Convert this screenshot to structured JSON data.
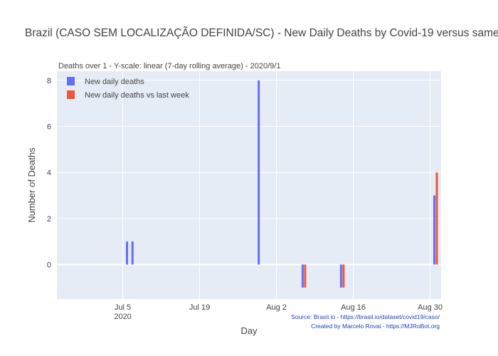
{
  "chart_data": {
    "type": "bar",
    "title": "Brazil (CASO SEM LOCALIZAÇÃO DEFINIDA/SC) - New Daily Deaths by Covid-19 versus same",
    "subtitle": "Deaths over 1 - Y-scale: linear (7-day rolling average) - 2020/9/1",
    "xlabel": "Day",
    "ylabel": "Number of Deaths",
    "ylim": [
      -1.5,
      8.4
    ],
    "xlim": [
      "2020-06-23",
      "2020-09-01"
    ],
    "yticks": [
      "0",
      "2",
      "4",
      "6",
      "8"
    ],
    "xticks": [
      {
        "date": "2020-07-05",
        "label": "Jul 5",
        "sublabel": "2020"
      },
      {
        "date": "2020-07-19",
        "label": "Jul 19",
        "sublabel": ""
      },
      {
        "date": "2020-08-02",
        "label": "Aug 2",
        "sublabel": ""
      },
      {
        "date": "2020-08-16",
        "label": "Aug 16",
        "sublabel": ""
      },
      {
        "date": "2020-08-30",
        "label": "Aug 30",
        "sublabel": ""
      }
    ],
    "legend_position": "top-left",
    "grid": true,
    "series": [
      {
        "name": "New daily deaths",
        "color": "#636efa",
        "points": [
          {
            "x": "2020-07-06",
            "y": 1
          },
          {
            "x": "2020-07-07",
            "y": 1
          },
          {
            "x": "2020-07-30",
            "y": 8
          },
          {
            "x": "2020-08-07",
            "y": -1
          },
          {
            "x": "2020-08-14",
            "y": -1
          },
          {
            "x": "2020-08-31",
            "y": 3
          }
        ]
      },
      {
        "name": "New daily deaths vs last week",
        "color": "#ef553b",
        "points": [
          {
            "x": "2020-08-07",
            "y": -1
          },
          {
            "x": "2020-08-14",
            "y": -1
          },
          {
            "x": "2020-08-31",
            "y": 4
          }
        ]
      }
    ]
  },
  "annotations": {
    "source": "Source: Brasil.io - https://brasil.io/dataset/covid19/caso/",
    "credit": "Created by Marcelo Rovai - https://MJRoBot.org"
  }
}
